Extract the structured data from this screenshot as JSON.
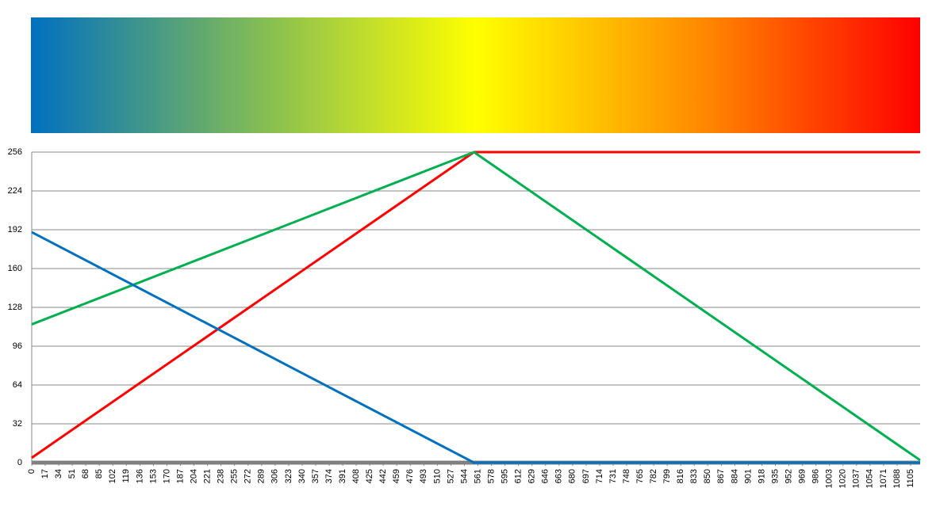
{
  "chart_data": {
    "type": "line",
    "x": [
      0,
      556,
      1117
    ],
    "series": [
      {
        "name": "red",
        "color": "#ff0000",
        "values": [
          4,
          256,
          256
        ]
      },
      {
        "name": "green",
        "color": "#00b050",
        "values": [
          114,
          256,
          2
        ]
      },
      {
        "name": "blue",
        "color": "#0070c0",
        "values": [
          190,
          0,
          0
        ]
      }
    ],
    "xlim": [
      0,
      1117
    ],
    "xticks": [
      0,
      17,
      34,
      51,
      68,
      85,
      102,
      119,
      136,
      153,
      170,
      187,
      204,
      221,
      238,
      255,
      272,
      289,
      306,
      323,
      340,
      357,
      374,
      391,
      408,
      425,
      442,
      459,
      476,
      493,
      510,
      527,
      544,
      561,
      578,
      595,
      612,
      629,
      646,
      663,
      680,
      697,
      714,
      731,
      748,
      765,
      782,
      799,
      816,
      833,
      850,
      867,
      884,
      901,
      918,
      935,
      952,
      969,
      986,
      1003,
      1020,
      1037,
      1054,
      1071,
      1088,
      1105
    ],
    "ylim": [
      0,
      256
    ],
    "yticks": [
      0,
      32,
      64,
      96,
      128,
      160,
      192,
      224,
      256
    ],
    "grid": true
  }
}
